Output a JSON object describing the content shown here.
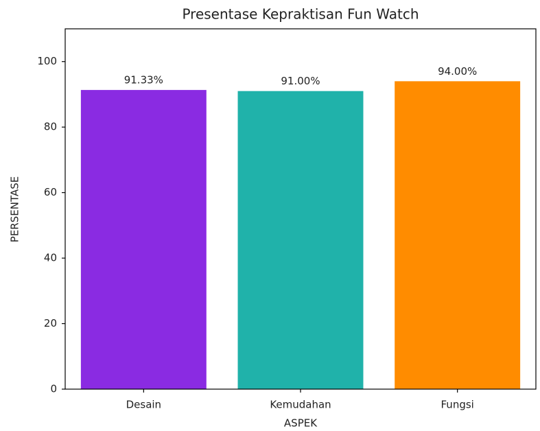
{
  "chart_data": {
    "type": "bar",
    "title": "Presentase Kepraktisan Fun Watch",
    "x_label": "ASPEK",
    "y_label": "PERSENTASE",
    "categories": [
      "Desain",
      "Kemudahan",
      "Fungsi"
    ],
    "values": [
      91.33,
      91,
      94
    ],
    "value_labels": [
      "91.33%",
      "91.00%",
      "94.00%"
    ],
    "colors": [
      "#8a2be2",
      "#20b2aa",
      "#ff8c00"
    ],
    "ylim": [
      0,
      110
    ],
    "yticks": [
      0,
      20,
      40,
      60,
      80,
      100
    ],
    "grid": false
  }
}
